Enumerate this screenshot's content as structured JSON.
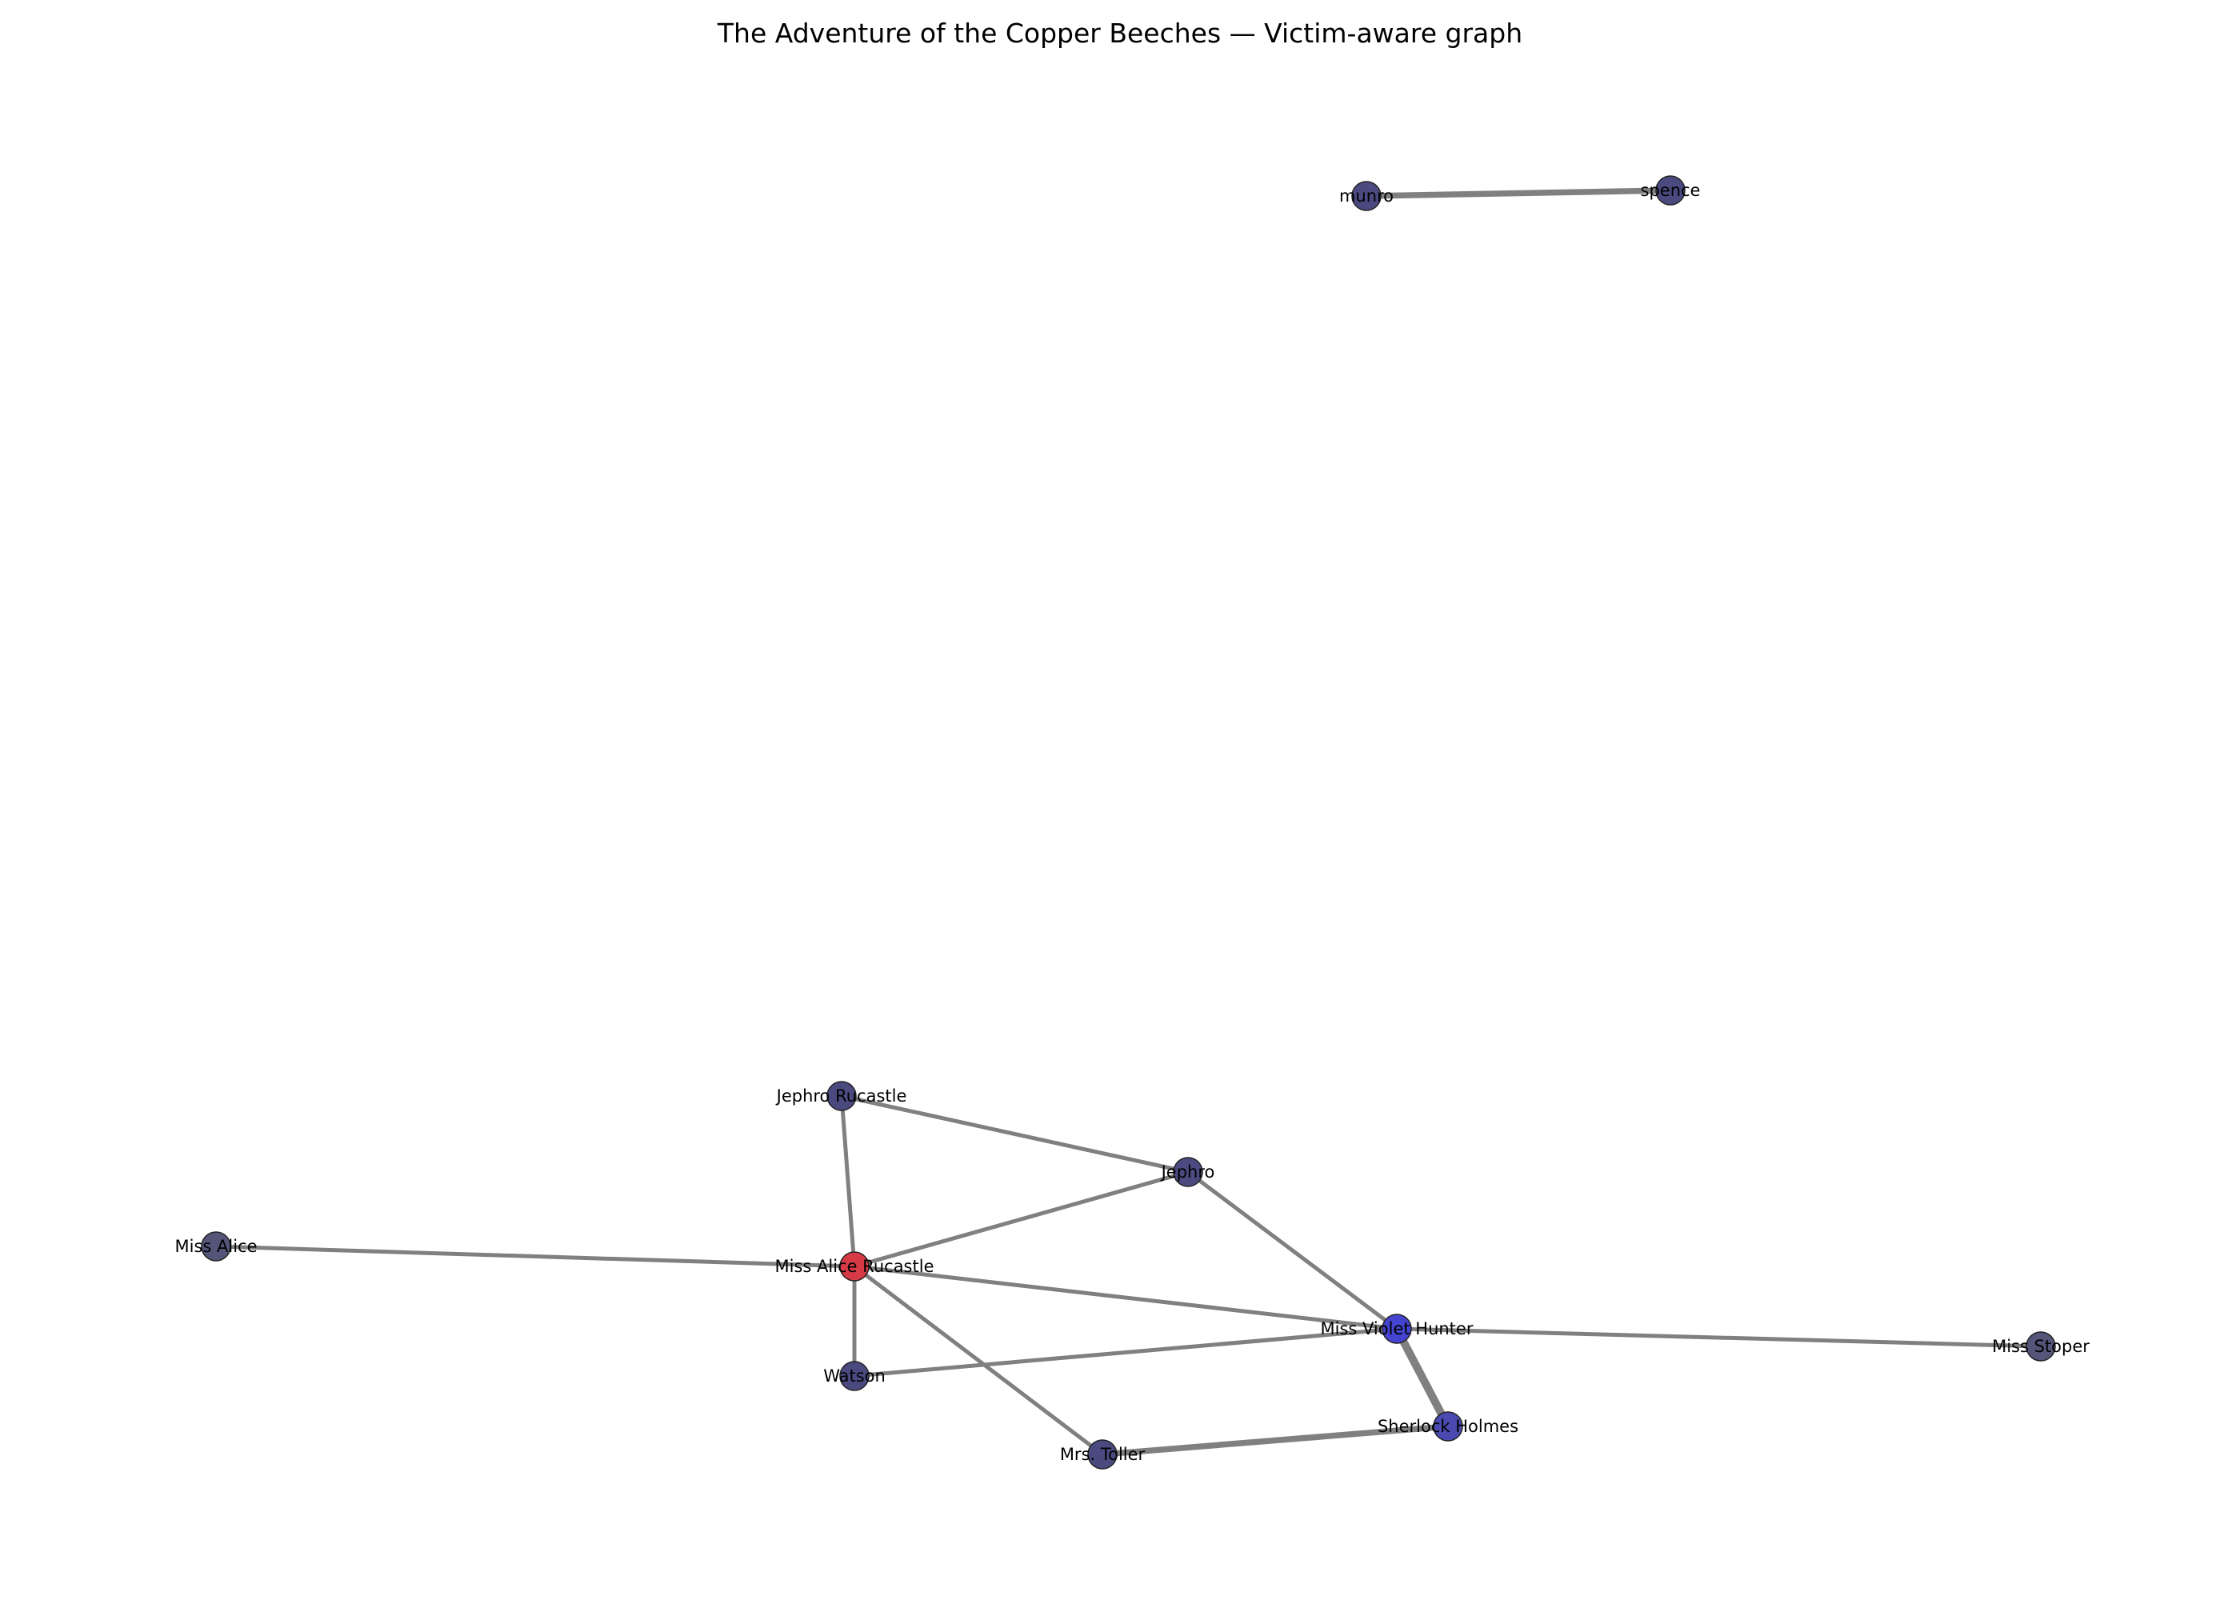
{
  "title": "The Adventure of the Copper Beeches — Victim-aware graph",
  "colors": {
    "victim": "#d63a45",
    "high": "#4444d0",
    "mid": "#4a4ab0",
    "default": "#4a4a80",
    "low": "#55557a",
    "edge": "#808080",
    "node_stroke": "#222222"
  },
  "nodes": [
    {
      "id": "munro",
      "label": "munro",
      "tone": "default"
    },
    {
      "id": "spence",
      "label": "spence",
      "tone": "default"
    },
    {
      "id": "jephro_rucastle",
      "label": "Jephro Rucastle",
      "tone": "default"
    },
    {
      "id": "jephro",
      "label": "Jephro",
      "tone": "default"
    },
    {
      "id": "miss_alice",
      "label": "Miss Alice",
      "tone": "low"
    },
    {
      "id": "miss_alice_rucastle",
      "label": "Miss Alice Rucastle",
      "tone": "victim"
    },
    {
      "id": "miss_violet_hunter",
      "label": "Miss Violet Hunter",
      "tone": "high"
    },
    {
      "id": "miss_stoper",
      "label": "Miss Stoper",
      "tone": "low"
    },
    {
      "id": "watson",
      "label": "Watson",
      "tone": "default"
    },
    {
      "id": "sherlock_holmes",
      "label": "Sherlock Holmes",
      "tone": "mid"
    },
    {
      "id": "mrs_toller",
      "label": "Mrs. Toller",
      "tone": "default"
    }
  ],
  "edges": [
    {
      "source": "munro",
      "target": "spence",
      "weight": 3
    },
    {
      "source": "jephro_rucastle",
      "target": "jephro",
      "weight": 2
    },
    {
      "source": "jephro_rucastle",
      "target": "miss_alice_rucastle",
      "weight": 2
    },
    {
      "source": "jephro",
      "target": "miss_alice_rucastle",
      "weight": 2
    },
    {
      "source": "jephro",
      "target": "miss_violet_hunter",
      "weight": 2
    },
    {
      "source": "miss_alice",
      "target": "miss_alice_rucastle",
      "weight": 2
    },
    {
      "source": "miss_alice_rucastle",
      "target": "miss_violet_hunter",
      "weight": 2
    },
    {
      "source": "miss_alice_rucastle",
      "target": "watson",
      "weight": 2
    },
    {
      "source": "miss_alice_rucastle",
      "target": "mrs_toller",
      "weight": 2
    },
    {
      "source": "watson",
      "target": "miss_violet_hunter",
      "weight": 2
    },
    {
      "source": "miss_violet_hunter",
      "target": "miss_stoper",
      "weight": 2
    },
    {
      "source": "miss_violet_hunter",
      "target": "sherlock_holmes",
      "weight": 4
    },
    {
      "source": "mrs_toller",
      "target": "sherlock_holmes",
      "weight": 3
    }
  ]
}
